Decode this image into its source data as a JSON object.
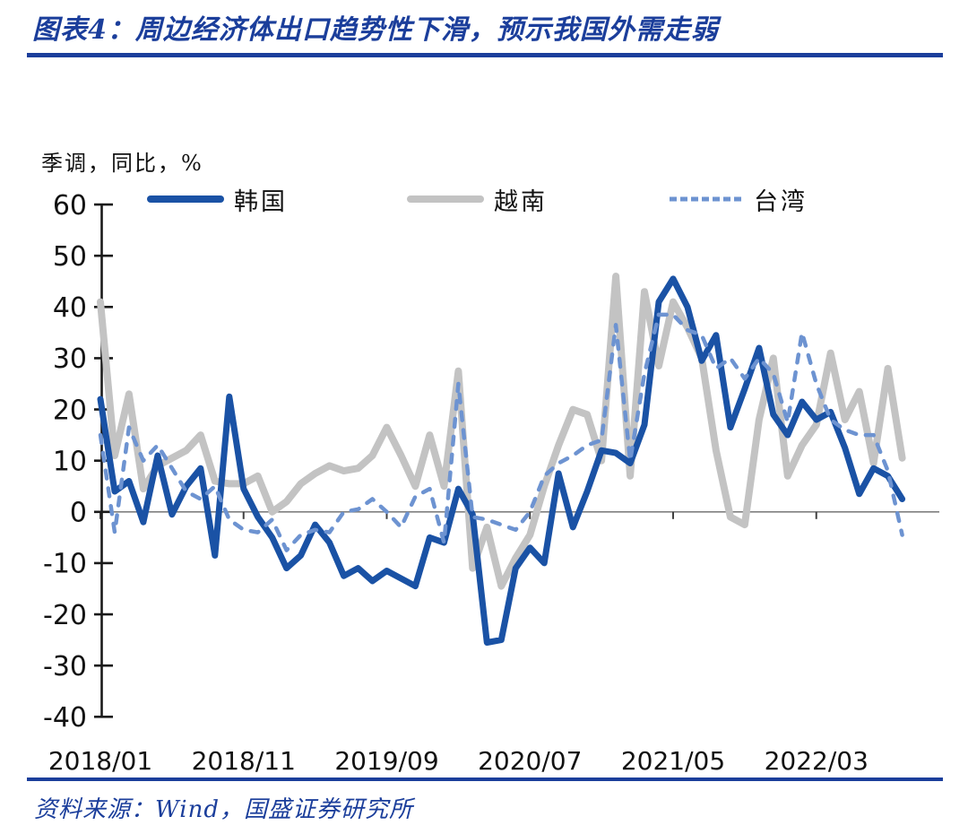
{
  "title": "图表4：周边经济体出口趋势性下滑，预示我国外需走弱",
  "unit_label": "季调，同比，%",
  "source": "资料来源：Wind，国盛证券研究所",
  "colors": {
    "accent_blue": "#1B3E9B",
    "axis_black": "#1A1A1A",
    "zero_line_gray": "#808080"
  },
  "chart_data": {
    "type": "line",
    "title": "周边经济体出口同比增速（季调）",
    "x_unit": "month",
    "x_start": "2018/01",
    "x_end": "2022/09",
    "ylabel": "季调，同比，%",
    "ylim": [
      -40,
      60
    ],
    "ytick_step": 10,
    "grid": false,
    "legend_position": "top",
    "x_ticks": [
      {
        "index": 0,
        "label": "2018/01"
      },
      {
        "index": 10,
        "label": "2018/11"
      },
      {
        "index": 20,
        "label": "2019/09"
      },
      {
        "index": 30,
        "label": "2020/07"
      },
      {
        "index": 40,
        "label": "2021/05"
      },
      {
        "index": 50,
        "label": "2022/03"
      }
    ],
    "series": [
      {
        "id": "korea",
        "name": "韩国",
        "color": "#1A52A5",
        "style": "solid",
        "width": 7,
        "values": [
          22,
          4,
          6,
          -2,
          11,
          -0.5,
          5,
          8.5,
          -8.5,
          22.5,
          4.5,
          -1,
          -5,
          -11,
          -8.5,
          -2.5,
          -6,
          -12.5,
          -11,
          -13.5,
          -11.5,
          -13,
          -14.5,
          -5,
          -6,
          4.5,
          -0.5,
          -25.5,
          -25,
          -11,
          -7,
          -10,
          7.5,
          -3,
          4,
          12,
          11.5,
          9.5,
          17,
          41,
          45.5,
          40,
          29.5,
          34.5,
          16.5,
          24,
          32,
          19,
          15,
          21.5,
          18,
          19.5,
          12.5,
          3.5,
          8.5,
          7,
          2.5
        ]
      },
      {
        "id": "vietnam",
        "name": "越南",
        "color": "#C3C3C3",
        "style": "solid",
        "width": 8,
        "values": [
          41,
          11,
          23,
          4.5,
          9,
          10.5,
          12,
          15,
          6,
          5.5,
          5.5,
          7,
          0,
          2,
          5.5,
          7.5,
          9,
          8,
          8.5,
          11,
          16.5,
          11,
          5,
          15,
          5,
          27.5,
          -11,
          -3,
          -14.5,
          -9,
          -4.5,
          5,
          13,
          20,
          19,
          10,
          46,
          7,
          43,
          28.5,
          41,
          36,
          30,
          12,
          -1,
          -2.5,
          18,
          30,
          7,
          13,
          17,
          31,
          18,
          23.5,
          9.5,
          28,
          10.5
        ]
      },
      {
        "id": "taiwan",
        "name": "台湾",
        "color": "#6D93D1",
        "style": "dashed",
        "width": 4.5,
        "dash": "9 11",
        "values": [
          15,
          -4,
          16.5,
          10,
          13,
          8.5,
          4,
          2.5,
          5,
          -1.5,
          -3.5,
          -4,
          -1.5,
          -7.5,
          -4.5,
          -3.5,
          -4,
          0,
          0.5,
          2.5,
          0,
          -3,
          3,
          4.5,
          -6,
          25,
          -1,
          -1.5,
          -2.5,
          -3.5,
          0,
          7,
          9.5,
          11,
          13,
          14,
          36.5,
          10,
          27,
          38.5,
          38.5,
          35.5,
          34.5,
          28,
          30,
          26,
          30,
          27,
          17.5,
          35,
          25,
          18,
          16,
          15,
          15,
          8,
          -4.5
        ]
      }
    ]
  }
}
